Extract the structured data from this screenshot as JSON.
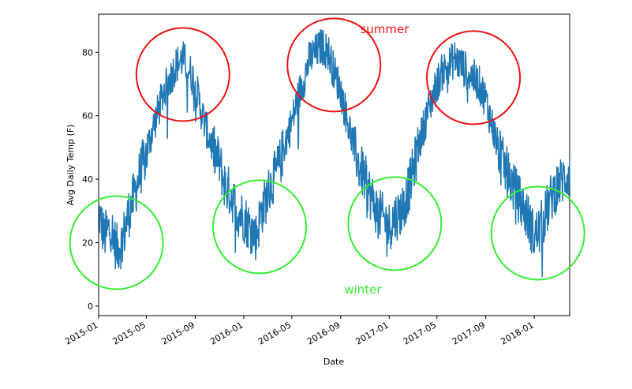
{
  "chart_data": {
    "type": "line",
    "title": "",
    "xlabel": "Date",
    "ylabel": "Avg Daily Temp (F)",
    "ylim": [
      -3,
      92
    ],
    "yticks": [
      0,
      20,
      40,
      60,
      80
    ],
    "xlim": [
      "2015-01-01",
      "2018-03-31"
    ],
    "xticks": [
      {
        "date": "2015-01-01",
        "label": "2015-01"
      },
      {
        "date": "2015-05-01",
        "label": "2015-05"
      },
      {
        "date": "2015-09-01",
        "label": "2015-09"
      },
      {
        "date": "2016-01-01",
        "label": "2016-01"
      },
      {
        "date": "2016-05-01",
        "label": "2016-05"
      },
      {
        "date": "2016-09-01",
        "label": "2016-09"
      },
      {
        "date": "2017-01-01",
        "label": "2017-01"
      },
      {
        "date": "2017-05-01",
        "label": "2017-05"
      },
      {
        "date": "2017-09-01",
        "label": "2017-09"
      },
      {
        "date": "2018-01-01",
        "label": "2018-01"
      }
    ],
    "grid": false,
    "legend": "none",
    "series": [
      {
        "color": "#1f77b4",
        "x": [
          "2015-01-01",
          "2015-01-15",
          "2015-02-01",
          "2015-02-15",
          "2015-03-01",
          "2015-03-15",
          "2015-04-01",
          "2015-04-15",
          "2015-05-01",
          "2015-05-15",
          "2015-06-01",
          "2015-06-15",
          "2015-07-01",
          "2015-07-15",
          "2015-08-01",
          "2015-08-15",
          "2015-09-01",
          "2015-09-15",
          "2015-10-01",
          "2015-10-15",
          "2015-11-01",
          "2015-11-15",
          "2015-12-01",
          "2015-12-15",
          "2016-01-01",
          "2016-01-15",
          "2016-02-01",
          "2016-02-15",
          "2016-03-01",
          "2016-03-15",
          "2016-04-01",
          "2016-04-15",
          "2016-05-01",
          "2016-05-15",
          "2016-06-01",
          "2016-06-15",
          "2016-07-01",
          "2016-07-15",
          "2016-08-01",
          "2016-08-15",
          "2016-09-01",
          "2016-09-15",
          "2016-10-01",
          "2016-10-15",
          "2016-11-01",
          "2016-11-15",
          "2016-12-01",
          "2016-12-15",
          "2017-01-01",
          "2017-01-15",
          "2017-02-01",
          "2017-02-15",
          "2017-03-01",
          "2017-03-15",
          "2017-04-01",
          "2017-04-15",
          "2017-05-01",
          "2017-05-15",
          "2017-06-01",
          "2017-06-15",
          "2017-07-01",
          "2017-07-15",
          "2017-08-01",
          "2017-08-15",
          "2017-09-01",
          "2017-09-15",
          "2017-10-01",
          "2017-10-15",
          "2017-11-01",
          "2017-11-15",
          "2017-12-01",
          "2017-12-15",
          "2018-01-01",
          "2018-01-15",
          "2018-02-01",
          "2018-02-15",
          "2018-03-01",
          "2018-03-15",
          "2018-03-31"
        ],
        "values": [
          30,
          22,
          25,
          18,
          20,
          28,
          35,
          42,
          48,
          55,
          62,
          68,
          72,
          76,
          78,
          75,
          70,
          62,
          55,
          50,
          45,
          38,
          35,
          30,
          28,
          25,
          22,
          30,
          35,
          40,
          45,
          52,
          58,
          65,
          72,
          78,
          80,
          82,
          80,
          74,
          68,
          60,
          52,
          45,
          40,
          35,
          30,
          28,
          25,
          28,
          30,
          35,
          42,
          50,
          58,
          64,
          70,
          74,
          76,
          78,
          76,
          74,
          72,
          70,
          65,
          58,
          50,
          45,
          40,
          36,
          32,
          28,
          22,
          24,
          30,
          35,
          38,
          40,
          42
        ]
      }
    ],
    "annotations": [
      {
        "text": "summer",
        "color": "#ee1111",
        "date": "2016-10-20",
        "value": 86
      },
      {
        "text": "winter",
        "color": "#33ee33",
        "date": "2016-09-10",
        "value": 4
      }
    ],
    "circles": [
      {
        "color": "#ee1111",
        "date": "2015-08-01",
        "value": 73
      },
      {
        "color": "#ee1111",
        "date": "2016-08-15",
        "value": 76
      },
      {
        "color": "#ee1111",
        "date": "2017-08-01",
        "value": 72
      },
      {
        "color": "#33ee33",
        "date": "2015-02-15",
        "value": 20
      },
      {
        "color": "#33ee33",
        "date": "2016-02-10",
        "value": 25
      },
      {
        "color": "#33ee33",
        "date": "2017-01-15",
        "value": 26
      },
      {
        "color": "#33ee33",
        "date": "2018-01-10",
        "value": 23
      }
    ]
  }
}
